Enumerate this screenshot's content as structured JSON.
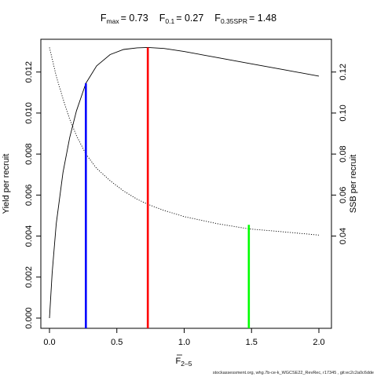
{
  "chart_data": {
    "type": "line",
    "title": {
      "fmax_label": "F",
      "fmax_sub": "max",
      "fmax_value": "= 0.73",
      "f01_label": "F",
      "f01_sub": "0.1",
      "f01_value": "= 0.27",
      "fspr_label": "F",
      "fspr_sub": "0.35SPR",
      "fspr_value": "= 1.48"
    },
    "xlabel": {
      "main": "F",
      "sub": "2–5"
    },
    "ylabel": "Yield per recruit",
    "y2label": "SSB per recruit",
    "xlim": [
      0,
      2
    ],
    "ylim": [
      0,
      0.0131
    ],
    "y2lim": [
      0.0,
      0.131
    ],
    "x_ticks": [
      "0.0",
      "0.5",
      "1.0",
      "1.5",
      "2.0"
    ],
    "y_ticks": [
      "0.000",
      "0.002",
      "0.004",
      "0.006",
      "0.008",
      "0.010",
      "0.012"
    ],
    "y2_ticks": [
      "0.04",
      "0.06",
      "0.08",
      "0.10",
      "0.12"
    ],
    "series": [
      {
        "role": "yield",
        "axis": "left",
        "style": "solid",
        "x": [
          0,
          0.02,
          0.05,
          0.1,
          0.15,
          0.2,
          0.27,
          0.35,
          0.45,
          0.55,
          0.65,
          0.73,
          0.85,
          1.0,
          1.25,
          1.5,
          1.75,
          2.0
        ],
        "y": [
          0,
          0.0022,
          0.0046,
          0.0071,
          0.0088,
          0.0101,
          0.01145,
          0.0123,
          0.01285,
          0.0131,
          0.01318,
          0.0132,
          0.01315,
          0.013,
          0.0127,
          0.0124,
          0.0121,
          0.0118
        ]
      },
      {
        "role": "ssb",
        "axis": "right",
        "style": "dotted",
        "x": [
          0,
          0.05,
          0.1,
          0.15,
          0.2,
          0.27,
          0.35,
          0.45,
          0.55,
          0.65,
          0.73,
          0.85,
          1.0,
          1.25,
          1.48,
          1.75,
          2.0
        ],
        "y": [
          0.132,
          0.118,
          0.107,
          0.097,
          0.089,
          0.08,
          0.073,
          0.067,
          0.062,
          0.058,
          0.0555,
          0.0525,
          0.0495,
          0.046,
          0.0435,
          0.042,
          0.0405
        ]
      }
    ],
    "reference_lines": [
      {
        "key": "f01",
        "x": 0.27,
        "y_top": 0.01145,
        "color": "#0000ff"
      },
      {
        "key": "fmax",
        "x": 0.73,
        "y_top": 0.0132,
        "color": "#ff0000"
      },
      {
        "key": "fspr",
        "x": 1.48,
        "y_top": 0.00455,
        "color": "#00ff00"
      }
    ],
    "grid": false,
    "legend": "none"
  },
  "footer": "stockassessment.org, whg.7b-ce-k_WGCSE22_RevRec, r17345 , git:ec2c2a0c6dde"
}
